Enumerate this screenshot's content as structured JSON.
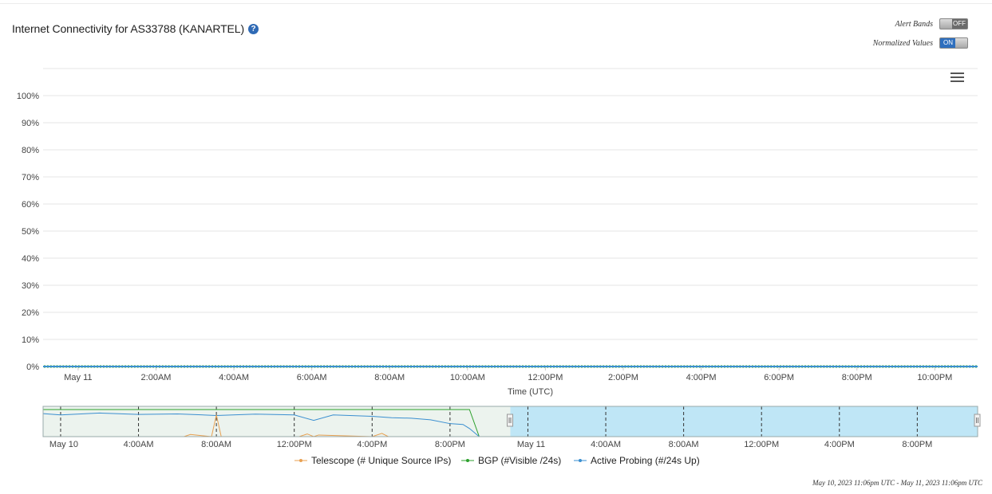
{
  "title": "Internet Connectivity for AS33788 (KANARTEL)",
  "help_icon": "question-circle-icon",
  "controls": {
    "alert_bands": {
      "label": "Alert Bands",
      "state": "OFF"
    },
    "normalized_values": {
      "label": "Normalized Values",
      "state": "ON"
    }
  },
  "menu_icon": "hamburger-menu-icon",
  "date_range": "May 10, 2023 11:06pm UTC - May 11, 2023 11:06pm UTC",
  "colors": {
    "telescope": "#e8a050",
    "bgp": "#2ca02c",
    "active_probing": "#3a8fd0",
    "navigator_selection": "#bfe6f6",
    "navigator_bg": "#ecf3ee"
  },
  "chart_data": [
    {
      "type": "line",
      "xlabel": "Time (UTC)",
      "ylabel": "",
      "ylim": [
        0,
        100
      ],
      "y_ticks": [
        "0%",
        "10%",
        "20%",
        "30%",
        "40%",
        "50%",
        "60%",
        "70%",
        "80%",
        "90%",
        "100%"
      ],
      "x_range": [
        "May 10 23:06",
        "May 11 23:06"
      ],
      "x_ticks": [
        {
          "t": "May 11 00:00",
          "label": "May 11"
        },
        {
          "t": "May 11 02:00",
          "label": "2:00AM"
        },
        {
          "t": "May 11 04:00",
          "label": "4:00AM"
        },
        {
          "t": "May 11 06:00",
          "label": "6:00AM"
        },
        {
          "t": "May 11 08:00",
          "label": "8:00AM"
        },
        {
          "t": "May 11 10:00",
          "label": "10:00AM"
        },
        {
          "t": "May 11 12:00",
          "label": "12:00PM"
        },
        {
          "t": "May 11 14:00",
          "label": "2:00PM"
        },
        {
          "t": "May 11 16:00",
          "label": "4:00PM"
        },
        {
          "t": "May 11 18:00",
          "label": "6:00PM"
        },
        {
          "t": "May 11 20:00",
          "label": "8:00PM"
        },
        {
          "t": "May 11 22:00",
          "label": "10:00PM"
        }
      ],
      "grid": true,
      "series": [
        {
          "name": "BGP (#Visible /24s)",
          "x": [
            "May 10 23:06",
            "May 11 23:06"
          ],
          "values": [
            0,
            0
          ]
        },
        {
          "name": "Active Probing (#/24s Up)",
          "x": [
            "May 10 23:06",
            "May 11 23:06"
          ],
          "values": [
            0,
            0
          ]
        },
        {
          "name": "Telescope (# Unique Source IPs)",
          "x": [],
          "values": []
        }
      ]
    },
    {
      "type": "line",
      "role": "navigator",
      "x_range": [
        "May 9 23:06",
        "May 11 23:06"
      ],
      "selection": [
        "May 10 23:06",
        "May 11 23:06"
      ],
      "x_ticks": [
        {
          "t": "May 10 00:00",
          "label": "May 10"
        },
        {
          "t": "May 10 04:00",
          "label": "4:00AM"
        },
        {
          "t": "May 10 08:00",
          "label": "8:00AM"
        },
        {
          "t": "May 10 12:00",
          "label": "12:00PM"
        },
        {
          "t": "May 10 16:00",
          "label": "4:00PM"
        },
        {
          "t": "May 10 20:00",
          "label": "8:00PM"
        },
        {
          "t": "May 11 00:00",
          "label": "May 11"
        },
        {
          "t": "May 11 04:00",
          "label": "4:00AM"
        },
        {
          "t": "May 11 08:00",
          "label": "8:00AM"
        },
        {
          "t": "May 11 12:00",
          "label": "12:00PM"
        },
        {
          "t": "May 11 16:00",
          "label": "4:00PM"
        },
        {
          "t": "May 11 20:00",
          "label": "8:00PM"
        }
      ],
      "series": [
        {
          "name": "BGP (#Visible /24s)",
          "x": [
            "May 9 23:06",
            "May 10 21:00",
            "May 10 21:30",
            "May 11 23:06"
          ],
          "values": [
            100,
            100,
            0,
            0
          ]
        },
        {
          "name": "Active Probing (#/24s Up)",
          "x": [
            "May 9 23:06",
            "May 10 00:00",
            "May 10 02:00",
            "May 10 04:00",
            "May 10 06:00",
            "May 10 08:00",
            "May 10 10:00",
            "May 10 12:00",
            "May 10 13:00",
            "May 10 14:00",
            "May 10 16:00",
            "May 10 17:00",
            "May 10 18:00",
            "May 10 19:00",
            "May 10 20:00",
            "May 10 20:40",
            "May 10 21:00",
            "May 10 21:30",
            "May 11 23:06"
          ],
          "values": [
            85,
            80,
            87,
            82,
            84,
            78,
            83,
            80,
            60,
            80,
            75,
            70,
            68,
            62,
            48,
            45,
            30,
            0,
            0
          ]
        },
        {
          "name": "Telescope (# Unique Source IPs)",
          "x": [
            "May 10 06:20",
            "May 10 06:40",
            "May 10 07:45",
            "May 10 08:00",
            "May 10 08:15",
            "May 10 12:15",
            "May 10 12:40",
            "May 10 13:00",
            "May 10 13:15",
            "May 10 16:00",
            "May 10 16:30",
            "May 10 16:50"
          ],
          "values": [
            0,
            8,
            0,
            80,
            0,
            0,
            10,
            0,
            6,
            0,
            12,
            0
          ]
        }
      ]
    }
  ],
  "legend": [
    {
      "name": "Telescope (# Unique Source IPs)",
      "color": "#e8a050"
    },
    {
      "name": "BGP (#Visible /24s)",
      "color": "#2ca02c"
    },
    {
      "name": "Active Probing (#/24s Up)",
      "color": "#3a8fd0"
    }
  ]
}
